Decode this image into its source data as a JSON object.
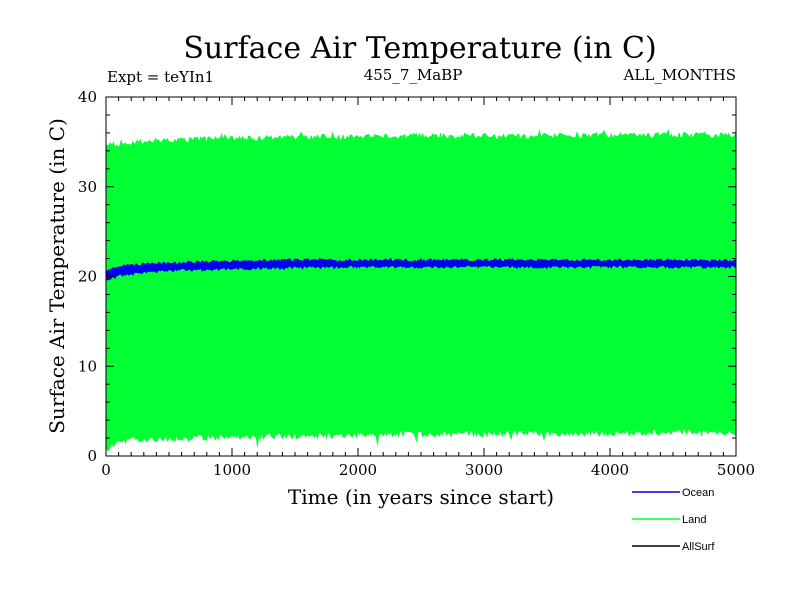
{
  "chart_data": {
    "type": "area",
    "title": "Surface Air Temperature (in C)",
    "subtitle_left": "Expt = teYIn1",
    "subtitle_center": "455_7_MaBP",
    "subtitle_right": "ALL_MONTHS",
    "xlabel": "Time (in years since start)",
    "ylabel": "Surface Air Temperature (in C)",
    "xlim": [
      0,
      5000
    ],
    "ylim": [
      0,
      40
    ],
    "xticks": [
      0,
      1000,
      2000,
      3000,
      4000,
      5000
    ],
    "xtick_labels": [
      "0",
      "1000",
      "2000",
      "3000",
      "4000",
      "5000"
    ],
    "yticks": [
      0,
      10,
      20,
      30,
      40
    ],
    "ytick_labels": [
      "0",
      "10",
      "20",
      "30",
      "40"
    ],
    "legend_position": "bottom-right",
    "series": [
      {
        "name": "Land",
        "color": "#00ff33",
        "x": [
          0,
          100,
          250,
          500,
          1000,
          1500,
          2000,
          2500,
          3000,
          3500,
          4000,
          4500,
          5000
        ],
        "upper": [
          34.8,
          35.2,
          35.4,
          35.5,
          35.7,
          35.8,
          35.9,
          36.0,
          36.0,
          36.0,
          36.1,
          36.1,
          36.1
        ],
        "lower": [
          0.4,
          1.2,
          1.5,
          1.6,
          1.8,
          1.9,
          2.0,
          2.1,
          2.1,
          2.2,
          2.2,
          2.3,
          2.3
        ]
      },
      {
        "name": "Ocean",
        "color": "#0000ee",
        "x": [
          0,
          100,
          250,
          500,
          1000,
          1500,
          2000,
          2500,
          3000,
          3500,
          4000,
          4500,
          5000
        ],
        "upper": [
          20.7,
          21.3,
          21.5,
          21.7,
          21.9,
          22.0,
          22.0,
          22.0,
          22.0,
          22.0,
          22.0,
          22.0,
          22.0
        ],
        "lower": [
          19.4,
          19.9,
          20.2,
          20.5,
          20.7,
          20.8,
          20.9,
          20.9,
          20.9,
          20.9,
          20.9,
          20.9,
          20.9
        ]
      },
      {
        "name": "AllSurf",
        "color": "#000000",
        "x": [],
        "upper": [],
        "lower": []
      }
    ]
  }
}
